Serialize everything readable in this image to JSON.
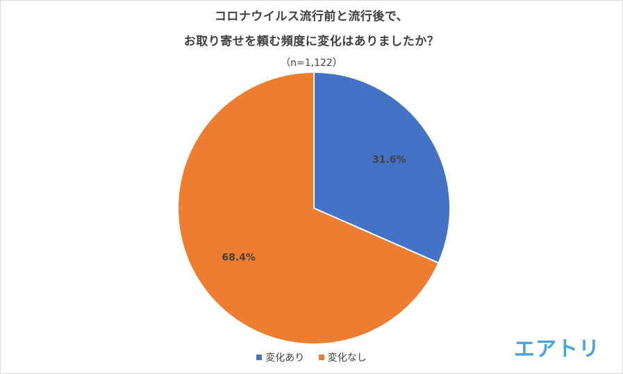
{
  "chart_data": {
    "type": "pie",
    "title_lines": [
      "コロナウイルス流行前と流行後で、",
      "お取り寄せを頼む頻度に変化はありましたか？"
    ],
    "subtitle": "（n=1,122）",
    "slices": [
      {
        "label": "変化あり",
        "value": 31.6,
        "display": "31.6%",
        "color": "#4472c4"
      },
      {
        "label": "変化なし",
        "value": 68.4,
        "display": "68.4%",
        "color": "#ed7d31"
      }
    ],
    "start_angle": "12 o'clock, clockwise",
    "legend_position": "bottom"
  },
  "legend": {
    "items": [
      {
        "label": "変化あり",
        "color": "#4472c4"
      },
      {
        "label": "変化なし",
        "color": "#ed7d31"
      }
    ]
  },
  "brand": {
    "logo_text": "エアトリ",
    "color": "#4aa3dc"
  }
}
